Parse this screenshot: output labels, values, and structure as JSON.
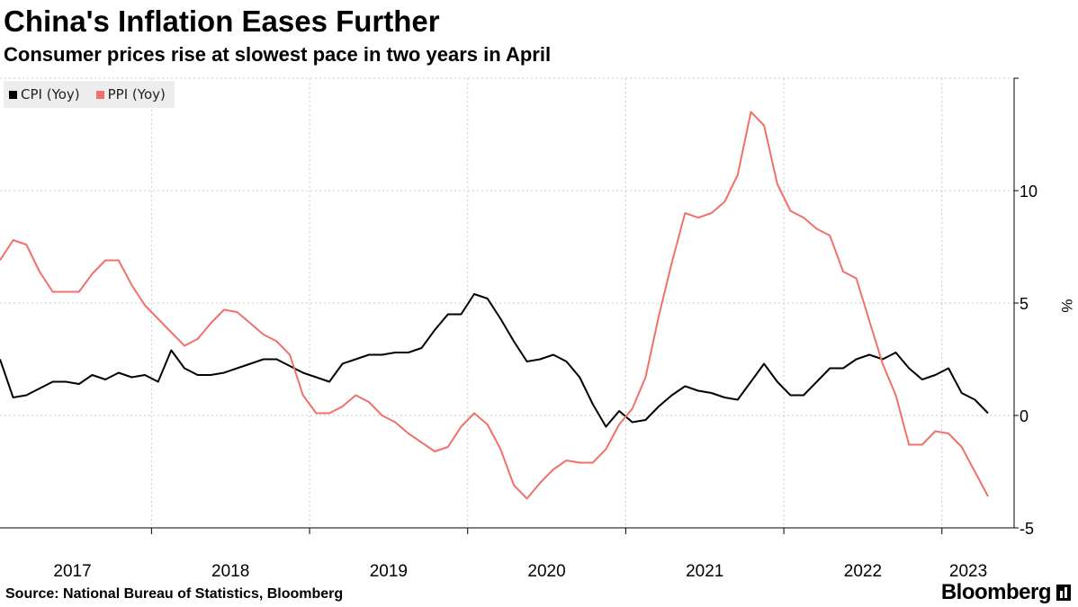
{
  "title": "China's Inflation Eases Further",
  "subtitle": "Consumer prices rise at slowest pace in two years in April",
  "source": "Source: National Bureau of Statistics, Bloomberg",
  "brand": "Bloomberg",
  "legend": [
    {
      "label": "CPI (Yoy)",
      "color": "#000000"
    },
    {
      "label": "PPI (Yoy)",
      "color": "#f0716c"
    }
  ],
  "chart_data": {
    "type": "line",
    "title": "China's Inflation Eases Further",
    "subtitle": "Consumer prices rise at slowest pace in two years in April",
    "xlabel": "",
    "ylabel": "%",
    "ylim": [
      -5,
      15
    ],
    "y_ticks": [
      -5,
      0,
      5,
      10
    ],
    "x_tick_labels": [
      "2017",
      "2018",
      "2019",
      "2020",
      "2021",
      "2022",
      "2023"
    ],
    "x_start": "2017-01",
    "x_end": "2023-04",
    "x": [
      "2017-01",
      "2017-02",
      "2017-03",
      "2017-04",
      "2017-05",
      "2017-06",
      "2017-07",
      "2017-08",
      "2017-09",
      "2017-10",
      "2017-11",
      "2017-12",
      "2018-01",
      "2018-02",
      "2018-03",
      "2018-04",
      "2018-05",
      "2018-06",
      "2018-07",
      "2018-08",
      "2018-09",
      "2018-10",
      "2018-11",
      "2018-12",
      "2019-01",
      "2019-02",
      "2019-03",
      "2019-04",
      "2019-05",
      "2019-06",
      "2019-07",
      "2019-08",
      "2019-09",
      "2019-10",
      "2019-11",
      "2019-12",
      "2020-01",
      "2020-02",
      "2020-03",
      "2020-04",
      "2020-05",
      "2020-06",
      "2020-07",
      "2020-08",
      "2020-09",
      "2020-10",
      "2020-11",
      "2020-12",
      "2021-01",
      "2021-02",
      "2021-03",
      "2021-04",
      "2021-05",
      "2021-06",
      "2021-07",
      "2021-08",
      "2021-09",
      "2021-10",
      "2021-11",
      "2021-12",
      "2022-01",
      "2022-02",
      "2022-03",
      "2022-04",
      "2022-05",
      "2022-06",
      "2022-07",
      "2022-08",
      "2022-09",
      "2022-10",
      "2022-11",
      "2022-12",
      "2023-01",
      "2023-02",
      "2023-03",
      "2023-04"
    ],
    "series": [
      {
        "name": "CPI (Yoy)",
        "color": "#000000",
        "values": [
          2.5,
          0.8,
          0.9,
          1.2,
          1.5,
          1.5,
          1.4,
          1.8,
          1.6,
          1.9,
          1.7,
          1.8,
          1.5,
          2.9,
          2.1,
          1.8,
          1.8,
          1.9,
          2.1,
          2.3,
          2.5,
          2.5,
          2.2,
          1.9,
          1.7,
          1.5,
          2.3,
          2.5,
          2.7,
          2.7,
          2.8,
          2.8,
          3.0,
          3.8,
          4.5,
          4.5,
          5.4,
          5.2,
          4.3,
          3.3,
          2.4,
          2.5,
          2.7,
          2.4,
          1.7,
          0.5,
          -0.5,
          0.2,
          -0.3,
          -0.2,
          0.4,
          0.9,
          1.3,
          1.1,
          1.0,
          0.8,
          0.7,
          1.5,
          2.3,
          1.5,
          0.9,
          0.9,
          1.5,
          2.1,
          2.1,
          2.5,
          2.7,
          2.5,
          2.8,
          2.1,
          1.6,
          1.8,
          2.1,
          1.0,
          0.7,
          0.1
        ]
      },
      {
        "name": "PPI (Yoy)",
        "color": "#f0716c",
        "values": [
          6.9,
          7.8,
          7.6,
          6.4,
          5.5,
          5.5,
          5.5,
          6.3,
          6.9,
          6.9,
          5.8,
          4.9,
          4.3,
          3.7,
          3.1,
          3.4,
          4.1,
          4.7,
          4.6,
          4.1,
          3.6,
          3.3,
          2.7,
          0.9,
          0.1,
          0.1,
          0.4,
          0.9,
          0.6,
          0.0,
          -0.3,
          -0.8,
          -1.2,
          -1.6,
          -1.4,
          -0.5,
          0.1,
          -0.4,
          -1.5,
          -3.1,
          -3.7,
          -3.0,
          -2.4,
          -2.0,
          -2.1,
          -2.1,
          -1.5,
          -0.4,
          0.3,
          1.7,
          4.4,
          6.8,
          9.0,
          8.8,
          9.0,
          9.5,
          10.7,
          13.5,
          12.9,
          10.3,
          9.1,
          8.8,
          8.3,
          8.0,
          6.4,
          6.1,
          4.2,
          2.3,
          0.9,
          -1.3,
          -1.3,
          -0.7,
          -0.8,
          -1.4,
          -2.5,
          -3.6
        ]
      }
    ]
  }
}
